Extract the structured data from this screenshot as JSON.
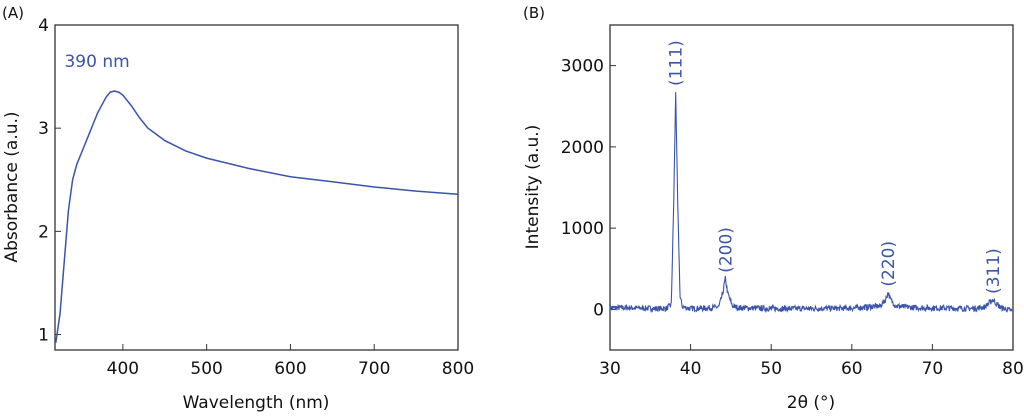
{
  "colors": {
    "series": "#3b54a8",
    "axis": "#333333",
    "text": "#111111"
  },
  "chart_data": [
    {
      "type": "line",
      "panel_label": "(A)",
      "xlabel": "Wavelength (nm)",
      "ylabel": "Absorbance (a.u.)",
      "xlim": [
        319,
        800
      ],
      "ylim": [
        0.85,
        4
      ],
      "xticks": [
        400,
        500,
        600,
        700,
        800
      ],
      "yticks": [
        1,
        2,
        3,
        4
      ],
      "grid": false,
      "annotations": [
        {
          "text": "390 nm",
          "x": 390,
          "y": 3.65
        }
      ],
      "x": [
        320,
        325,
        330,
        335,
        340,
        345,
        350,
        360,
        370,
        380,
        385,
        390,
        395,
        400,
        410,
        420,
        430,
        440,
        450,
        475,
        500,
        550,
        600,
        650,
        700,
        750,
        800
      ],
      "y": [
        0.92,
        1.2,
        1.7,
        2.2,
        2.5,
        2.65,
        2.75,
        2.95,
        3.15,
        3.3,
        3.35,
        3.36,
        3.35,
        3.32,
        3.22,
        3.1,
        3.0,
        2.94,
        2.88,
        2.78,
        2.71,
        2.61,
        2.53,
        2.48,
        2.43,
        2.39,
        2.36
      ]
    },
    {
      "type": "line",
      "panel_label": "(B)",
      "xlabel": "2θ (°)",
      "ylabel": "Intensity (a.u.)",
      "xlim": [
        30,
        80
      ],
      "ylim": [
        -500,
        3500
      ],
      "xticks": [
        30,
        40,
        50,
        60,
        70,
        80
      ],
      "yticks": [
        0,
        1000,
        2000,
        3000
      ],
      "grid": false,
      "annotations": [
        {
          "text": "(111)",
          "x": 38.1,
          "y": 2750
        },
        {
          "text": "(200)",
          "x": 44.3,
          "y": 450
        },
        {
          "text": "(220)",
          "x": 64.5,
          "y": 280
        },
        {
          "text": "(311)",
          "x": 77.5,
          "y": 190
        }
      ],
      "x": [
        30,
        32,
        34,
        36,
        37,
        37.6,
        37.9,
        38.15,
        38.4,
        38.7,
        39,
        40,
        42,
        43.5,
        44.0,
        44.3,
        44.6,
        45.2,
        46,
        50,
        55,
        60,
        62,
        63.5,
        64.2,
        64.5,
        64.8,
        65.5,
        68,
        72,
        75,
        76.5,
        77.2,
        77.5,
        77.9,
        78.5,
        80
      ],
      "y": [
        20,
        20,
        15,
        10,
        10,
        60,
        1300,
        2680,
        1300,
        150,
        30,
        10,
        15,
        30,
        200,
        380,
        200,
        40,
        20,
        10,
        10,
        15,
        30,
        40,
        120,
        210,
        120,
        40,
        20,
        15,
        10,
        30,
        90,
        120,
        70,
        20,
        -20
      ]
    }
  ]
}
